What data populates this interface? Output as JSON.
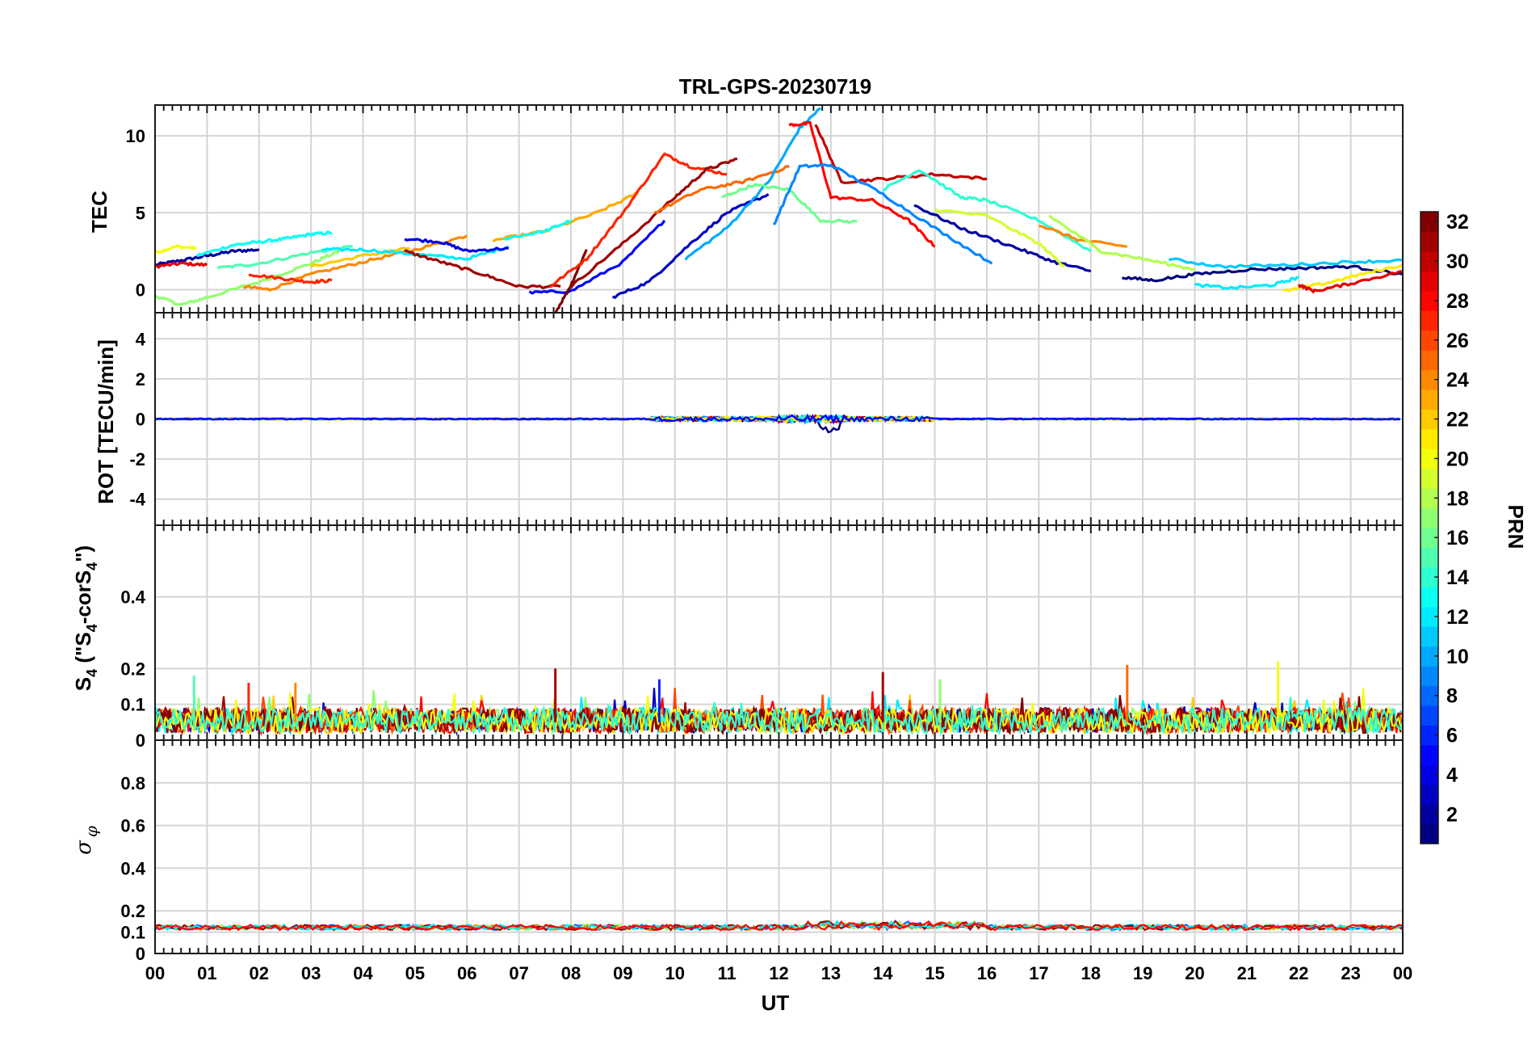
{
  "chart_data": [
    {
      "type": "line",
      "panel": "TEC",
      "title": "TRL-GPS-20230719",
      "ylabel": "TEC",
      "xlim": [
        0,
        24
      ],
      "ylim": [
        -1.5,
        12
      ],
      "yticks": [
        0,
        5,
        10
      ],
      "series": [
        {
          "name": "PRN 2",
          "prn": 2,
          "x": [
            0,
            0.5,
            1,
            1.5,
            2
          ],
          "y": [
            1.6,
            1.9,
            2.2,
            2.5,
            2.6
          ]
        },
        {
          "name": "PRN 20",
          "prn": 20,
          "x": [
            0,
            0.4,
            0.8
          ],
          "y": [
            2.4,
            2.8,
            2.7
          ]
        },
        {
          "name": "PRN 29",
          "prn": 29,
          "x": [
            0,
            0.5,
            1
          ],
          "y": [
            1.5,
            1.7,
            1.6
          ]
        },
        {
          "name": "PRN 17",
          "prn": 17,
          "x": [
            0,
            0.5,
            1,
            2,
            3,
            3.6
          ],
          "y": [
            -0.4,
            -1.0,
            -0.5,
            0.5,
            1.7,
            2.6
          ]
        },
        {
          "name": "PRN 13",
          "prn": 13,
          "x": [
            0.8,
            1.5,
            2,
            2.5,
            3,
            3.4
          ],
          "y": [
            2.2,
            2.9,
            3.1,
            3.3,
            3.6,
            3.7
          ]
        },
        {
          "name": "PRN 15",
          "prn": 15,
          "x": [
            1.2,
            2,
            3,
            3.8
          ],
          "y": [
            1.4,
            1.7,
            2.4,
            2.8
          ]
        },
        {
          "name": "PRN 24",
          "prn": 24,
          "x": [
            1.7,
            2.2,
            3,
            4,
            5,
            6
          ],
          "y": [
            0.2,
            0.0,
            1.0,
            1.8,
            2.6,
            3.5
          ]
        },
        {
          "name": "PRN 27",
          "prn": 27,
          "x": [
            1.8,
            2.5,
            3,
            3.4
          ],
          "y": [
            1.0,
            0.7,
            0.5,
            0.6
          ]
        },
        {
          "name": "PRN 22",
          "prn": 22,
          "x": [
            3,
            4,
            4.9
          ],
          "y": [
            1.5,
            2.2,
            2.7
          ]
        },
        {
          "name": "PRN 12",
          "prn": 12,
          "x": [
            3.2,
            4,
            5,
            6,
            6.8
          ],
          "y": [
            2.6,
            2.6,
            2.3,
            2.0,
            2.8
          ]
        },
        {
          "name": "PRN 4",
          "prn": 4,
          "x": [
            4.8,
            5.5,
            6,
            6.8
          ],
          "y": [
            3.3,
            3.1,
            2.5,
            2.7
          ]
        },
        {
          "name": "PRN 31",
          "prn": 31,
          "x": [
            4.8,
            5.5,
            6.3,
            7,
            7.8
          ],
          "y": [
            2.5,
            1.8,
            1.0,
            0.2,
            0.2
          ]
        },
        {
          "name": "PRN 23",
          "prn": 23,
          "x": [
            6.5,
            7.5,
            8.5,
            9.3
          ],
          "y": [
            3.2,
            3.8,
            5.0,
            6.3
          ]
        },
        {
          "name": "PRN 13b",
          "prn": 13,
          "x": [
            6.7,
            7.5,
            8.0
          ],
          "y": [
            3.3,
            3.8,
            4.5
          ]
        },
        {
          "name": "PRN 5",
          "prn": 5,
          "x": [
            7.2,
            8.0,
            9.0,
            9.8
          ],
          "y": [
            -0.2,
            -0.1,
            1.8,
            4.5
          ]
        },
        {
          "name": "PRN 32",
          "prn": 32,
          "x": [
            7.7,
            8.0,
            8.3
          ],
          "y": [
            -1.5,
            0.3,
            2.6
          ]
        },
        {
          "name": "PRN 27b",
          "prn": 27,
          "x": [
            7.6,
            8.3,
            9.0,
            9.8,
            10.3,
            11
          ],
          "y": [
            0.2,
            2.0,
            5.0,
            8.8,
            8.0,
            7.5
          ]
        },
        {
          "name": "PRN 31b",
          "prn": 31,
          "x": [
            8.0,
            9.0,
            10.0,
            10.6,
            11.2
          ],
          "y": [
            0.2,
            3.0,
            6.0,
            7.8,
            8.5
          ]
        },
        {
          "name": "PRN 3",
          "prn": 3,
          "x": [
            8.8,
            9.5,
            10.3,
            11,
            11.8
          ],
          "y": [
            -0.5,
            0.5,
            3.0,
            5.0,
            6.2
          ]
        },
        {
          "name": "PRN 25",
          "prn": 25,
          "x": [
            9.6,
            10.5,
            11.3,
            12.2
          ],
          "y": [
            5.0,
            6.5,
            7.0,
            8.0
          ]
        },
        {
          "name": "PRN 10",
          "prn": 10,
          "x": [
            10.2,
            11,
            11.8,
            12.4,
            12.8
          ],
          "y": [
            2.0,
            4.0,
            7.0,
            10.5,
            11.8
          ]
        },
        {
          "name": "PRN 16",
          "prn": 16,
          "x": [
            10.9,
            11.5,
            12.2,
            12.8,
            13.5
          ],
          "y": [
            6.0,
            6.8,
            6.5,
            4.5,
            4.4
          ]
        },
        {
          "name": "PRN 28",
          "prn": 28,
          "x": [
            12.2,
            12.6,
            13.0,
            13.8,
            14.5,
            15.0
          ],
          "y": [
            10.7,
            10.8,
            6.0,
            5.8,
            4.5,
            2.8
          ]
        },
        {
          "name": "PRN 30",
          "prn": 30,
          "x": [
            12.7,
            13.2,
            14.0,
            15.0,
            16.0
          ],
          "y": [
            10.8,
            7.0,
            7.2,
            7.5,
            7.2
          ]
        },
        {
          "name": "PRN 9",
          "prn": 9,
          "x": [
            11.9,
            12.4,
            13.0,
            14.0,
            15.0,
            16.1
          ],
          "y": [
            4.2,
            8.0,
            8.1,
            6.2,
            4.0,
            1.7
          ]
        },
        {
          "name": "PRN 14",
          "prn": 14,
          "x": [
            14.0,
            14.7,
            15.5,
            16.0,
            17.0,
            18.0
          ],
          "y": [
            6.5,
            7.8,
            6.0,
            5.8,
            4.5,
            2.5
          ]
        },
        {
          "name": "PRN 2b",
          "prn": 2,
          "x": [
            14.6,
            15.5,
            16.5,
            17.3,
            18.0
          ],
          "y": [
            5.5,
            4.0,
            2.8,
            1.8,
            1.2
          ]
        },
        {
          "name": "PRN 19",
          "prn": 19,
          "x": [
            15.0,
            16.0,
            17.0,
            17.5
          ],
          "y": [
            5.2,
            4.8,
            3.0,
            1.5
          ]
        },
        {
          "name": "PRN 24b",
          "prn": 24,
          "x": [
            17.0,
            17.8,
            18.7
          ],
          "y": [
            4.2,
            3.2,
            2.8
          ]
        },
        {
          "name": "PRN 18",
          "prn": 18,
          "x": [
            17.2,
            18.2,
            19.0,
            20.0
          ],
          "y": [
            4.8,
            2.5,
            2.0,
            1.3
          ]
        },
        {
          "name": "PRN 1",
          "prn": 1,
          "x": [
            18.6,
            19.2,
            20.0,
            21.0,
            22.0,
            23.0,
            24.0
          ],
          "y": [
            0.8,
            0.6,
            1.0,
            1.3,
            1.4,
            1.5,
            1.0
          ]
        },
        {
          "name": "PRN 12b",
          "prn": 12,
          "x": [
            20.0,
            20.7,
            21.5,
            22.0
          ],
          "y": [
            0.3,
            0.1,
            0.3,
            0.8
          ]
        },
        {
          "name": "PRN 11",
          "prn": 11,
          "x": [
            19.5,
            20.5,
            21.8,
            23.0,
            24.0
          ],
          "y": [
            2.0,
            1.5,
            1.6,
            1.8,
            1.9
          ]
        },
        {
          "name": "PRN 21",
          "prn": 21,
          "x": [
            21.7,
            22.5,
            23.2,
            24.0
          ],
          "y": [
            -0.1,
            0.4,
            1.0,
            1.6
          ]
        },
        {
          "name": "PRN 29b",
          "prn": 29,
          "x": [
            22.0,
            22.3,
            23.0,
            24.0
          ],
          "y": [
            0.3,
            -0.1,
            0.4,
            1.2
          ]
        }
      ]
    },
    {
      "type": "line",
      "panel": "ROT",
      "ylabel": "ROT [TECU/min]",
      "xlim": [
        0,
        24
      ],
      "ylim": [
        -5.3,
        5.3
      ],
      "yticks": [
        -4,
        -2,
        0,
        2,
        4
      ],
      "series_note": "All PRNs stay within about ±0.5 TECU/min of zero."
    },
    {
      "type": "line",
      "panel": "S4",
      "ylabel": "S4 (\"S4-corS4\")",
      "ylabel_parts": {
        "a": "S",
        "b": "4",
        "c": " (\"S",
        "d": "4",
        "e": "-corS",
        "f": "4",
        "g": "\")"
      },
      "xlim": [
        0,
        24
      ],
      "ylim": [
        0,
        0.6
      ],
      "yticks": [
        0,
        0.1,
        0.2,
        0.4
      ],
      "baseline_range": [
        0.02,
        0.1
      ],
      "spikes": [
        {
          "x": 0.75,
          "y": 0.18
        },
        {
          "x": 1.8,
          "y": 0.16
        },
        {
          "x": 2.7,
          "y": 0.16
        },
        {
          "x": 7.7,
          "y": 0.2
        },
        {
          "x": 9.7,
          "y": 0.17
        },
        {
          "x": 14.0,
          "y": 0.19
        },
        {
          "x": 15.1,
          "y": 0.17
        },
        {
          "x": 18.7,
          "y": 0.21
        },
        {
          "x": 21.6,
          "y": 0.22
        }
      ]
    },
    {
      "type": "line",
      "panel": "sigma_phi",
      "ylabel": "σ",
      "ylabel_sub": "φ",
      "xlabel": "UT",
      "xlim": [
        0,
        24
      ],
      "ylim": [
        0,
        1
      ],
      "yticks": [
        0,
        0.1,
        0.2,
        0.4,
        0.6,
        0.8
      ],
      "baseline_range": [
        0.1,
        0.14
      ]
    }
  ],
  "x_ticks": [
    "00",
    "01",
    "02",
    "03",
    "04",
    "05",
    "06",
    "07",
    "08",
    "09",
    "10",
    "11",
    "12",
    "13",
    "14",
    "15",
    "16",
    "17",
    "18",
    "19",
    "20",
    "21",
    "22",
    "23",
    "00"
  ],
  "colorbar": {
    "label": "PRN",
    "min": 1,
    "max": 32,
    "ticks": [
      2,
      4,
      6,
      8,
      10,
      12,
      14,
      16,
      18,
      20,
      22,
      24,
      26,
      28,
      30,
      32
    ]
  }
}
